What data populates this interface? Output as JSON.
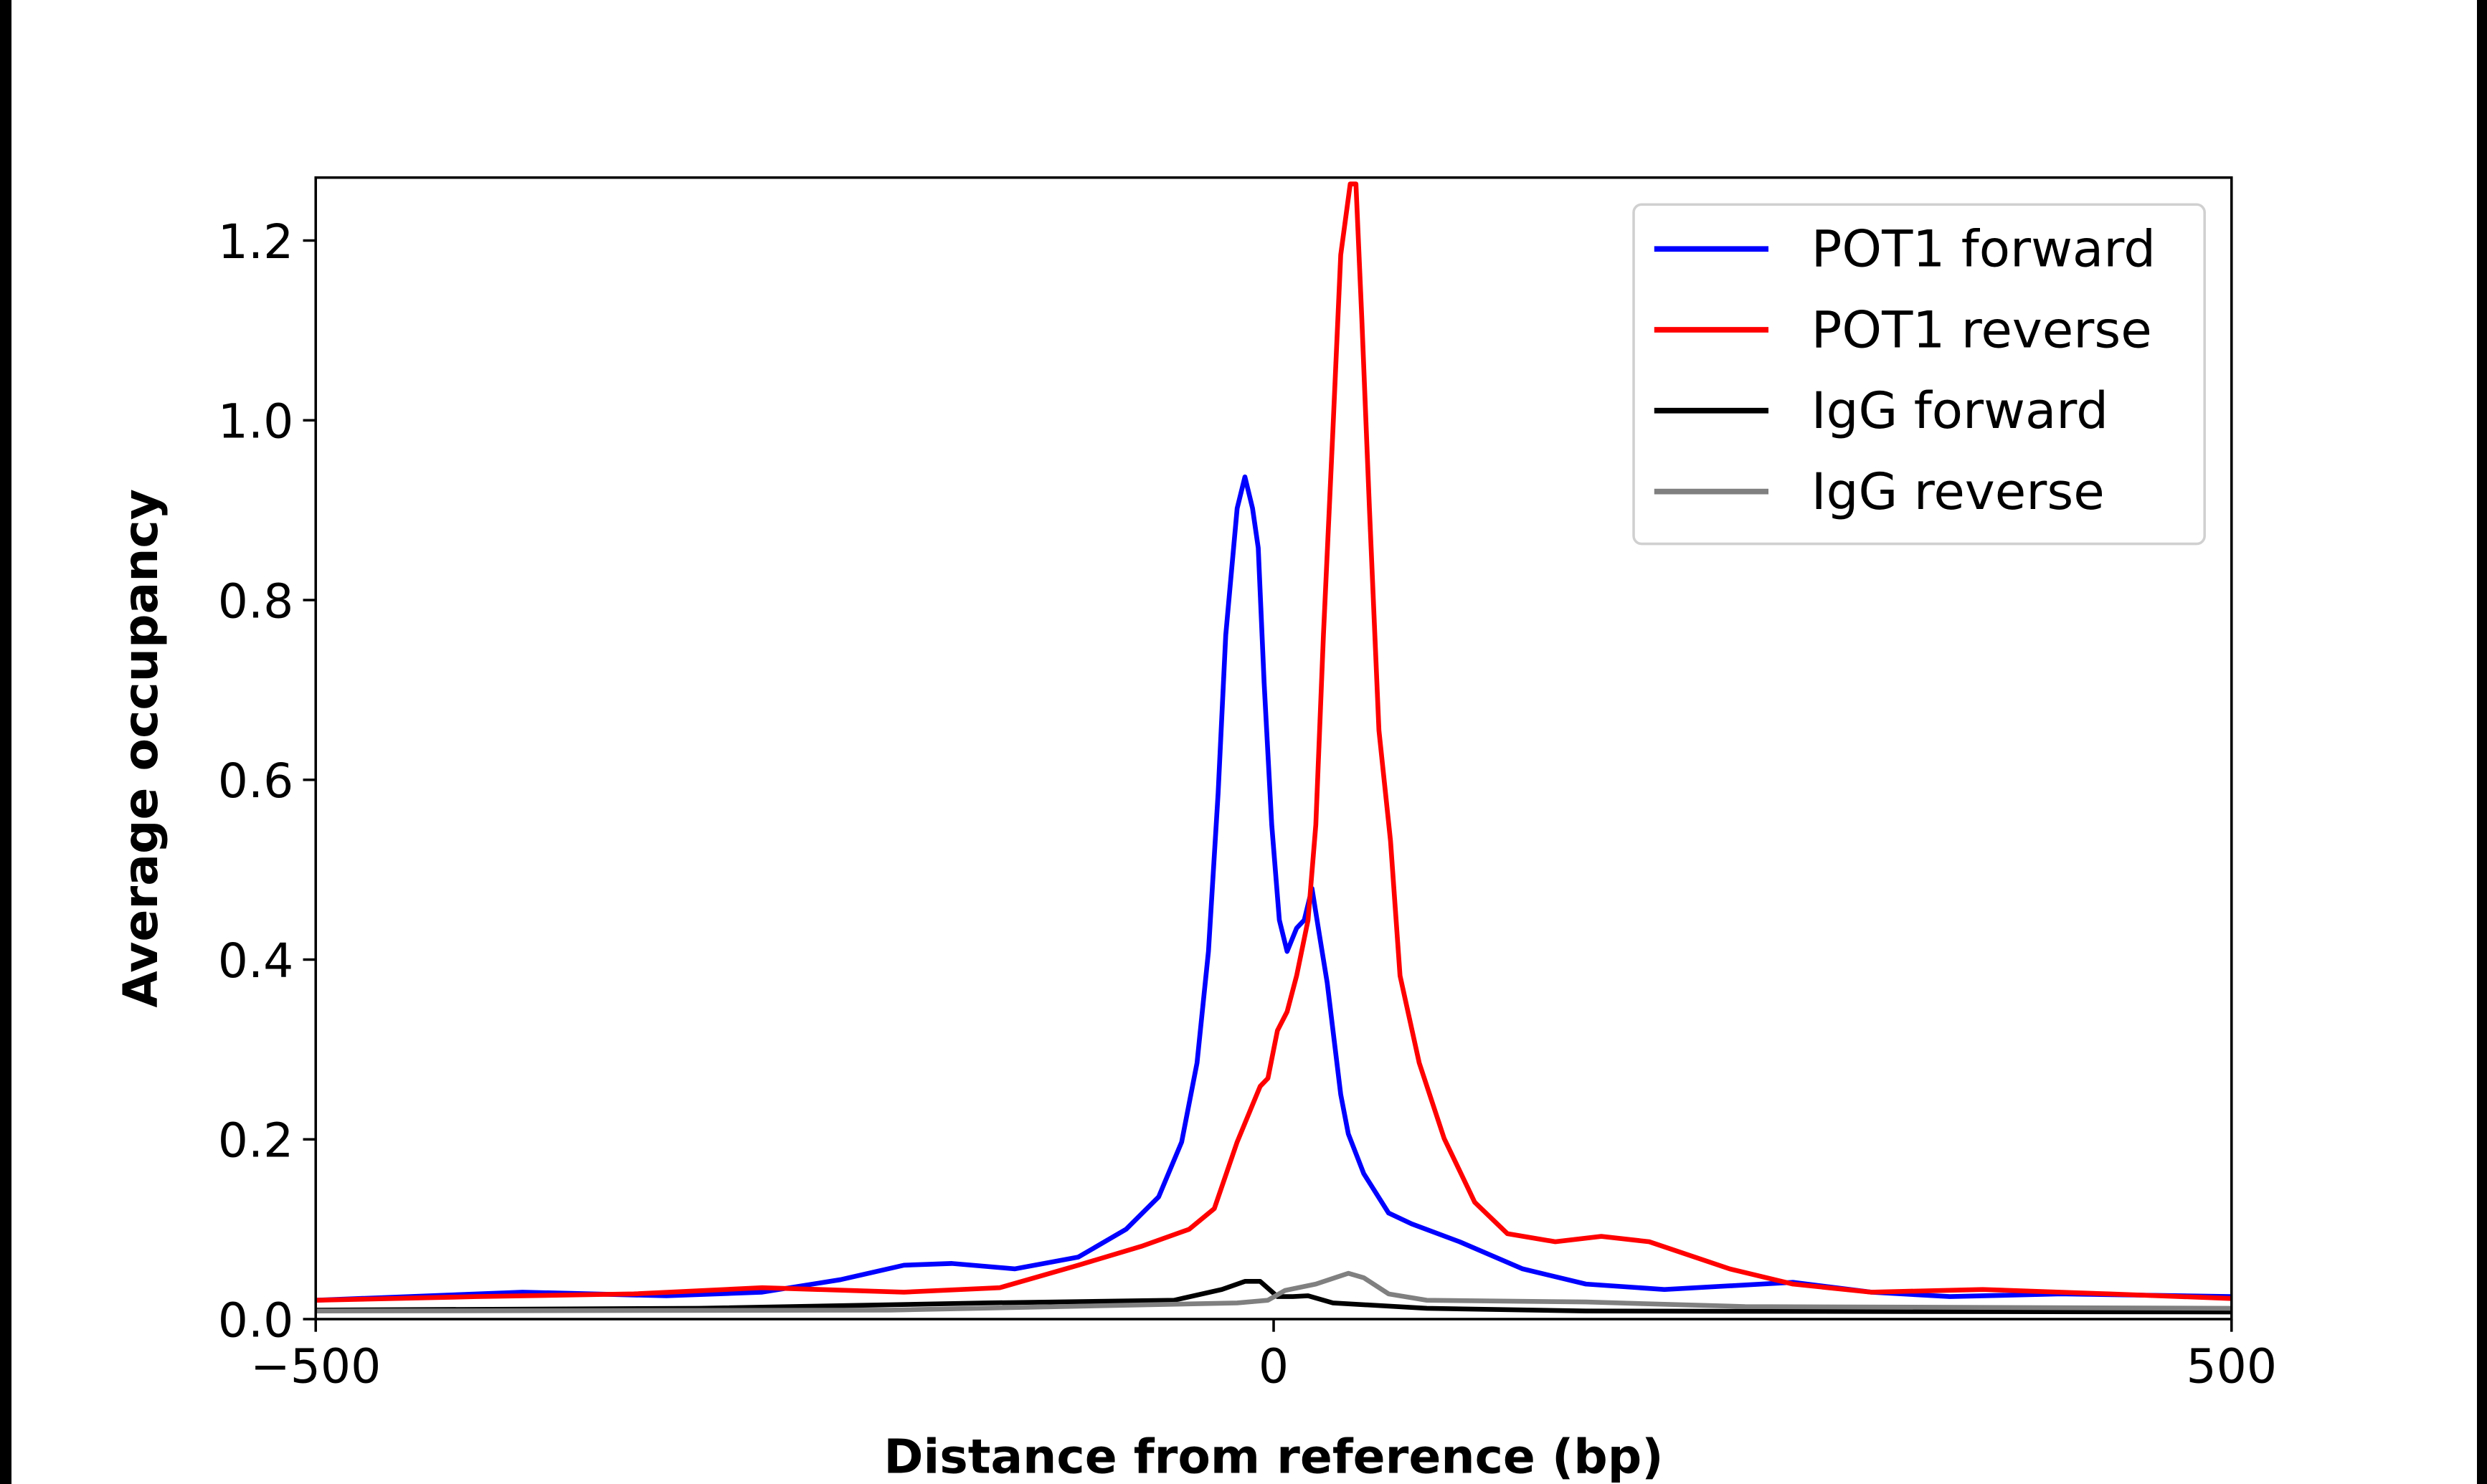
{
  "chart_data": {
    "type": "line",
    "title": "",
    "xlabel": "Distance from reference (bp)",
    "ylabel": "Average occupancy",
    "xlim": [
      -500,
      500
    ],
    "ylim": [
      0,
      1.27
    ],
    "xticks": [
      -500,
      0,
      500
    ],
    "xtick_labels": [
      "−500",
      "0",
      "500"
    ],
    "yticks": [
      0,
      0.2,
      0.4,
      0.6,
      0.8,
      1.0,
      1.2
    ],
    "ytick_labels": [
      "0.0",
      "0.2",
      "0.4",
      "0.6",
      "0.8",
      "1.0",
      "1.2"
    ],
    "grid": false,
    "legend_position": "top-right",
    "series": [
      {
        "name": "POT1 forward",
        "color": "#0000ff",
        "x": [
          -500,
          -392,
          -317,
          -267,
          -226,
          -193,
          -168,
          -135,
          -102,
          -77,
          -60,
          -48,
          -40,
          -34,
          -29,
          -25,
          -19,
          -15,
          -11,
          -8,
          -5,
          -1,
          3,
          7,
          12,
          16,
          20,
          24,
          28,
          35,
          39,
          47,
          60,
          72,
          97,
          130,
          163,
          204,
          271,
          312,
          353,
          411,
          500
        ],
        "y": [
          0.021,
          0.03,
          0.026,
          0.03,
          0.044,
          0.06,
          0.062,
          0.056,
          0.069,
          0.1,
          0.136,
          0.197,
          0.285,
          0.409,
          0.585,
          0.761,
          0.902,
          0.937,
          0.902,
          0.858,
          0.708,
          0.55,
          0.444,
          0.409,
          0.435,
          0.444,
          0.479,
          0.426,
          0.374,
          0.25,
          0.206,
          0.162,
          0.118,
          0.106,
          0.086,
          0.056,
          0.039,
          0.033,
          0.041,
          0.03,
          0.025,
          0.028,
          0.025
        ]
      },
      {
        "name": "POT1 reverse",
        "color": "#ff0000",
        "x": [
          -500,
          -416,
          -334,
          -267,
          -193,
          -143,
          -102,
          -69,
          -44,
          -31,
          -19,
          -7,
          -3,
          2,
          7,
          12,
          18,
          22,
          26,
          31,
          35,
          40,
          43,
          46,
          50,
          55,
          61,
          66,
          76,
          89,
          105,
          122,
          147,
          171,
          196,
          238,
          271,
          312,
          370,
          436,
          500
        ],
        "y": [
          0.021,
          0.025,
          0.028,
          0.035,
          0.03,
          0.035,
          0.06,
          0.081,
          0.1,
          0.123,
          0.197,
          0.259,
          0.268,
          0.321,
          0.342,
          0.382,
          0.444,
          0.55,
          0.761,
          0.99,
          1.184,
          1.263,
          1.263,
          1.113,
          0.902,
          0.655,
          0.532,
          0.382,
          0.285,
          0.201,
          0.13,
          0.095,
          0.086,
          0.092,
          0.086,
          0.056,
          0.039,
          0.03,
          0.033,
          0.028,
          0.023
        ]
      },
      {
        "name": "IgG forward",
        "color": "#000000",
        "x": [
          -500,
          -300,
          -150,
          -52,
          -27,
          -15,
          -7,
          2,
          10,
          18,
          31,
          80,
          163,
          500
        ],
        "y": [
          0.01,
          0.012,
          0.018,
          0.021,
          0.033,
          0.042,
          0.042,
          0.025,
          0.025,
          0.026,
          0.018,
          0.012,
          0.009,
          0.008
        ]
      },
      {
        "name": "IgG reverse",
        "color": "#808080",
        "x": [
          -500,
          -200,
          -19,
          -3,
          6,
          22,
          39,
          47,
          60,
          80,
          163,
          246,
          500
        ],
        "y": [
          0.009,
          0.01,
          0.018,
          0.021,
          0.032,
          0.039,
          0.051,
          0.046,
          0.028,
          0.021,
          0.019,
          0.014,
          0.012
        ]
      }
    ]
  }
}
